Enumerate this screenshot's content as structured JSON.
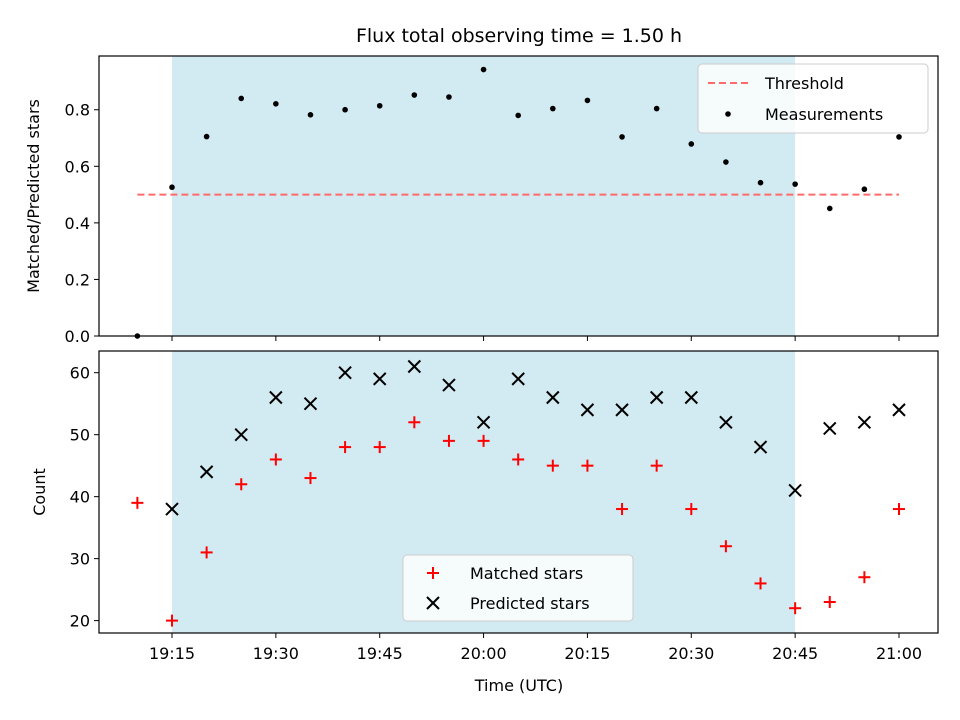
{
  "chart_data": [
    {
      "type": "scatter",
      "title": "Flux total observing time = 1.50 h",
      "xlabel": "",
      "ylabel": "Matched/Predicted stars",
      "ylim": [
        0,
        0.99
      ],
      "yticks": [
        "0.0",
        "0.2",
        "0.4",
        "0.6",
        "0.8"
      ],
      "ytick_values": [
        0,
        0.2,
        0.4,
        0.6,
        0.8
      ],
      "shaded_span": {
        "start": "19:15",
        "end": "20:45",
        "color": "#add8e6"
      },
      "legend_placement": "top-right",
      "threshold": {
        "name": "Threshold",
        "value": 0.5,
        "x_start": "19:10",
        "x_end": "21:00",
        "color": "#ff6b6b"
      },
      "series": [
        {
          "name": "Measurements",
          "color": "#000000",
          "marker": "dot",
          "x": [
            "19:10",
            "19:15",
            "19:20",
            "19:25",
            "19:30",
            "19:35",
            "19:40",
            "19:45",
            "19:50",
            "19:55",
            "20:00",
            "20:05",
            "20:10",
            "20:15",
            "20:20",
            "20:25",
            "20:30",
            "20:35",
            "20:40",
            "20:45",
            "20:50",
            "20:55",
            "21:00"
          ],
          "y": [
            0.0,
            0.526,
            0.705,
            0.84,
            0.821,
            0.782,
            0.8,
            0.814,
            0.852,
            0.845,
            0.942,
            0.78,
            0.804,
            0.833,
            0.704,
            0.804,
            0.679,
            0.615,
            0.542,
            0.537,
            0.451,
            0.519,
            0.704
          ]
        }
      ]
    },
    {
      "type": "scatter",
      "title": "",
      "xlabel": "Time (UTC)",
      "ylabel": "Count",
      "ylim": [
        18,
        63.5
      ],
      "yticks": [
        "20",
        "30",
        "40",
        "50",
        "60"
      ],
      "ytick_values": [
        20,
        30,
        40,
        50,
        60
      ],
      "xticks": [
        "19:15",
        "19:30",
        "19:45",
        "20:00",
        "20:15",
        "20:30",
        "20:45",
        "21:00"
      ],
      "shaded_span": {
        "start": "19:15",
        "end": "20:45",
        "color": "#add8e6"
      },
      "legend_placement": "lower-center",
      "series": [
        {
          "name": "Matched stars",
          "color": "#ff0000",
          "marker": "plus",
          "x": [
            "19:10",
            "19:15",
            "19:20",
            "19:25",
            "19:30",
            "19:35",
            "19:40",
            "19:45",
            "19:50",
            "19:55",
            "20:00",
            "20:05",
            "20:10",
            "20:15",
            "20:20",
            "20:25",
            "20:30",
            "20:35",
            "20:40",
            "20:45",
            "20:50",
            "20:55",
            "21:00"
          ],
          "y": [
            39,
            20,
            31,
            42,
            46,
            43,
            48,
            48,
            52,
            49,
            49,
            46,
            45,
            45,
            38,
            45,
            38,
            32,
            26,
            22,
            23,
            27,
            38
          ]
        },
        {
          "name": "Predicted stars",
          "color": "#000000",
          "marker": "x",
          "x": [
            "19:15",
            "19:20",
            "19:25",
            "19:30",
            "19:35",
            "19:40",
            "19:45",
            "19:50",
            "19:55",
            "20:00",
            "20:05",
            "20:10",
            "20:15",
            "20:20",
            "20:25",
            "20:30",
            "20:35",
            "20:40",
            "20:45",
            "20:50",
            "20:55",
            "21:00"
          ],
          "y": [
            38,
            44,
            50,
            56,
            55,
            60,
            59,
            61,
            58,
            52,
            59,
            56,
            54,
            54,
            56,
            56,
            52,
            48,
            41,
            51,
            52,
            54
          ]
        }
      ]
    }
  ]
}
